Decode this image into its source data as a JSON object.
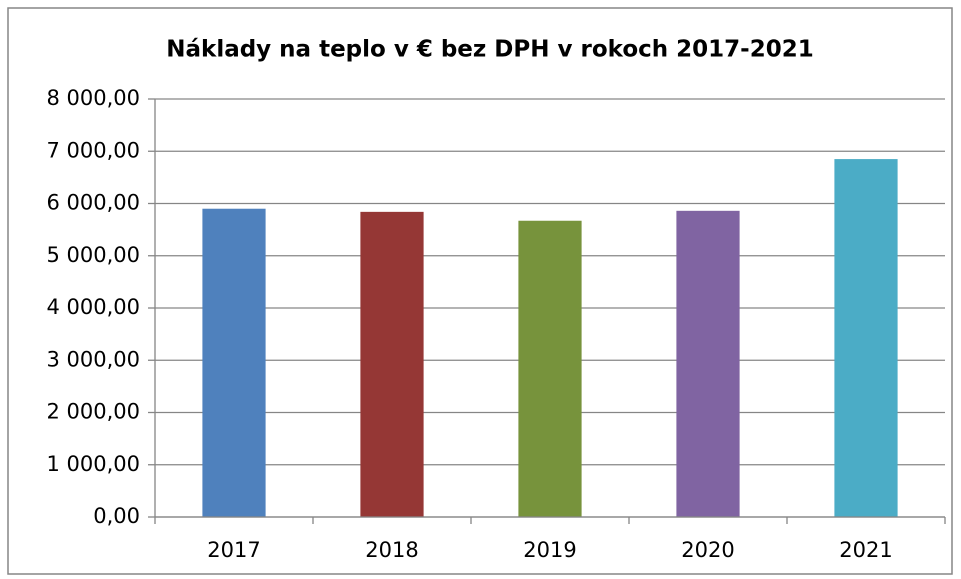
{
  "chart_data": {
    "type": "bar",
    "title": "Náklady na teplo v € bez DPH v rokoch 2017-2021",
    "categories": [
      "2017",
      "2018",
      "2019",
      "2020",
      "2021"
    ],
    "values": [
      5900,
      5840,
      5670,
      5860,
      6850
    ],
    "colors": [
      "#4f81bd",
      "#953735",
      "#77933c",
      "#8064a2",
      "#4bacc6"
    ],
    "ylim": [
      0,
      8000
    ],
    "yticks": [
      {
        "value": 0,
        "label": "0,00"
      },
      {
        "value": 1000,
        "label": "1 000,00"
      },
      {
        "value": 2000,
        "label": "2 000,00"
      },
      {
        "value": 3000,
        "label": "3 000,00"
      },
      {
        "value": 4000,
        "label": "4 000,00"
      },
      {
        "value": 5000,
        "label": "5 000,00"
      },
      {
        "value": 6000,
        "label": "6 000,00"
      },
      {
        "value": 7000,
        "label": "7 000,00"
      },
      {
        "value": 8000,
        "label": "8 000,00"
      }
    ],
    "grid": true
  }
}
